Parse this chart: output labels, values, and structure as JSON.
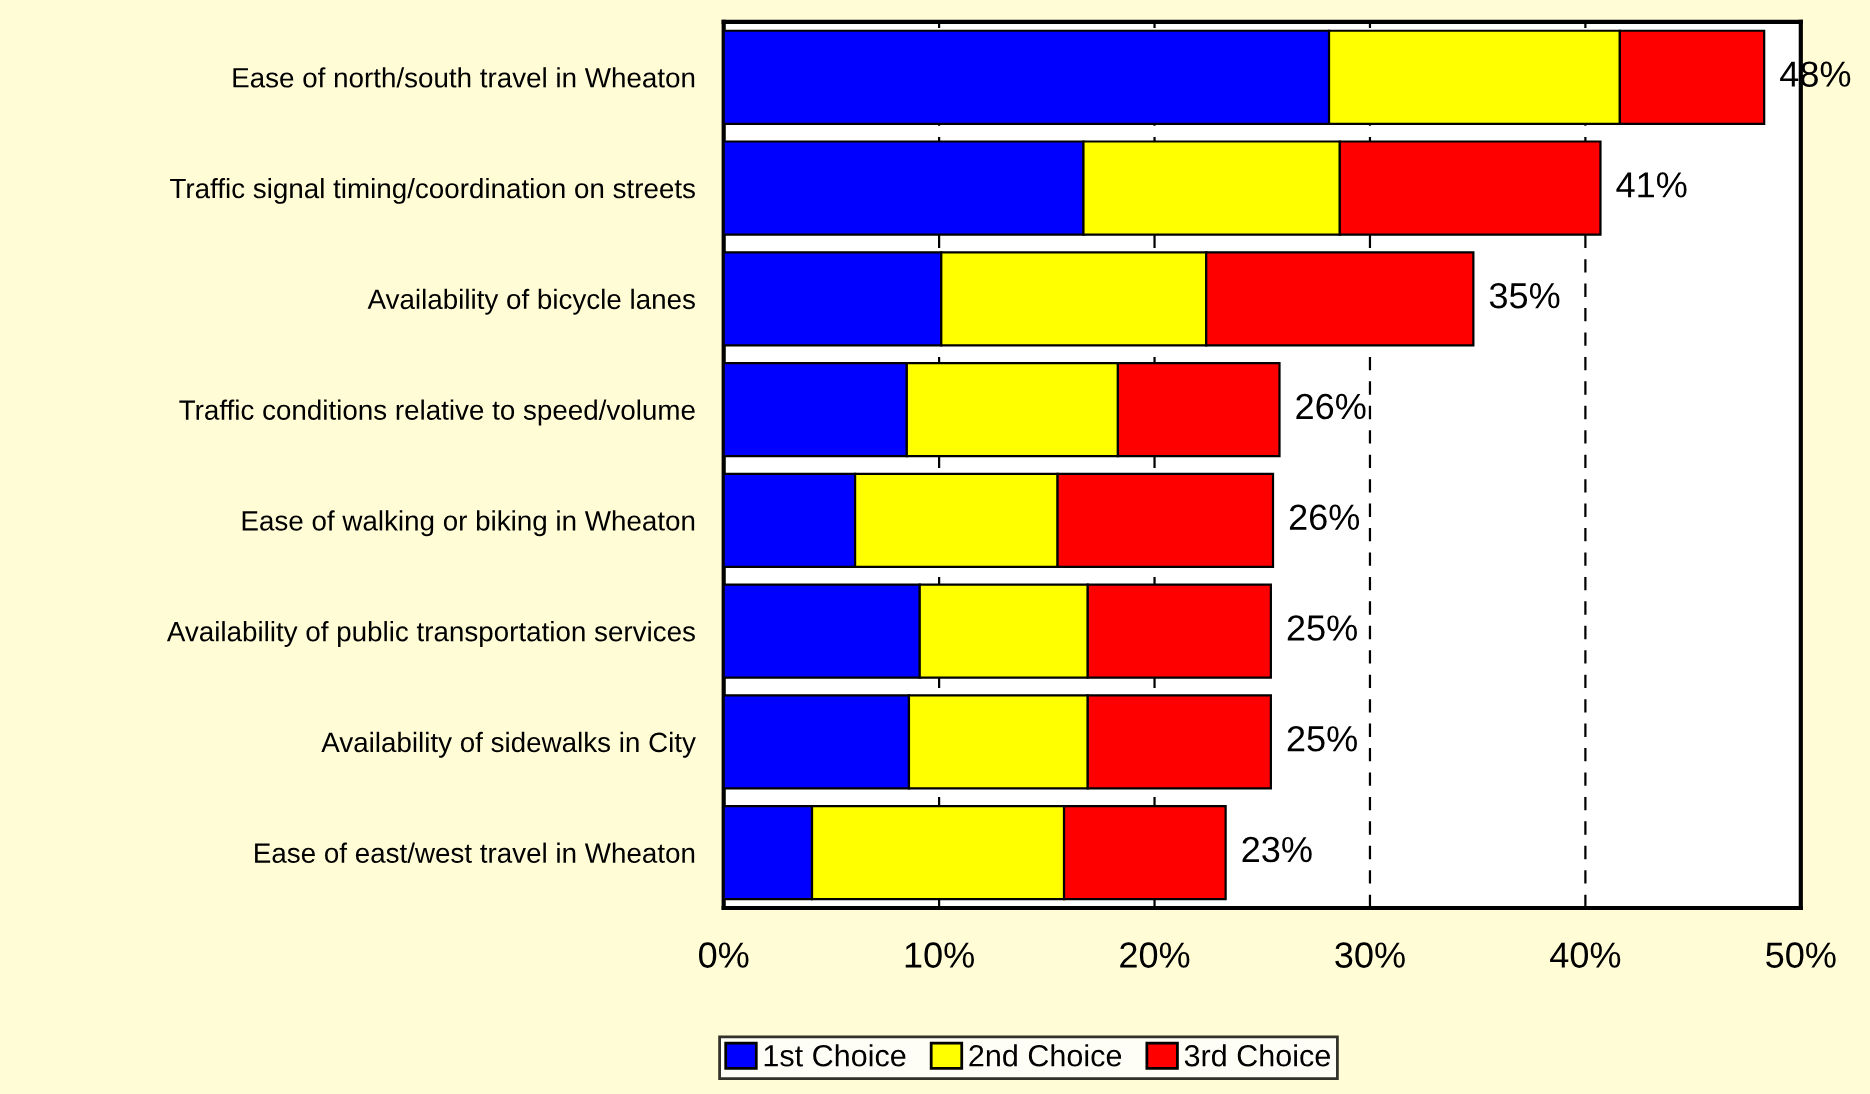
{
  "chart_data": {
    "type": "bar",
    "orientation": "horizontal",
    "stacked": true,
    "categories": [
      "Ease of north/south travel in Wheaton",
      "Traffic signal timing/coordination on streets",
      "Availability of bicycle lanes",
      "Traffic conditions relative to speed/volume",
      "Ease of walking or biking in Wheaton",
      "Availability of public transportation services",
      "Availability of sidewalks in City",
      "Ease of east/west travel in Wheaton"
    ],
    "series": [
      {
        "name": "1st Choice",
        "color": "#0000ff",
        "values": [
          28.1,
          16.7,
          10.1,
          8.5,
          6.1,
          9.1,
          8.6,
          4.1
        ]
      },
      {
        "name": "2nd Choice",
        "color": "#ffff00",
        "values": [
          13.5,
          11.9,
          12.3,
          9.8,
          9.4,
          7.8,
          8.3,
          11.7
        ]
      },
      {
        "name": "3rd Choice",
        "color": "#ff0000",
        "values": [
          6.7,
          12.1,
          12.4,
          7.5,
          10.0,
          8.5,
          8.5,
          7.5
        ]
      }
    ],
    "totals": [
      "48%",
      "41%",
      "35%",
      "26%",
      "26%",
      "25%",
      "25%",
      "23%"
    ],
    "xlim": [
      0,
      50
    ],
    "xticks": [
      {
        "value": 0,
        "label": "0%"
      },
      {
        "value": 10,
        "label": "10%"
      },
      {
        "value": 20,
        "label": "20%"
      },
      {
        "value": 30,
        "label": "30%"
      },
      {
        "value": 40,
        "label": "40%"
      },
      {
        "value": 50,
        "label": "50%"
      }
    ],
    "grid": "x",
    "legend": "bottom"
  }
}
